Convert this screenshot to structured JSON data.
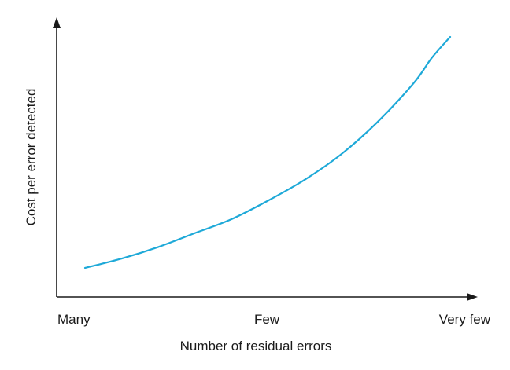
{
  "chart_data": {
    "type": "line",
    "title": "",
    "xlabel": "Number of residual errors",
    "ylabel": "Cost per error detected",
    "categories": [
      "Many",
      "Few",
      "Very few"
    ],
    "x": [
      0.0,
      0.1,
      0.2,
      0.3,
      0.4,
      0.5,
      0.6,
      0.7,
      0.8,
      0.9,
      0.95,
      1.0
    ],
    "y": [
      0.0,
      0.04,
      0.09,
      0.15,
      0.21,
      0.29,
      0.38,
      0.49,
      0.63,
      0.8,
      0.91,
      1.0
    ],
    "xlim": [
      0,
      1
    ],
    "ylim": [
      0,
      1
    ],
    "series": [
      {
        "values": [
          0.0,
          0.04,
          0.09,
          0.15,
          0.21,
          0.29,
          0.38,
          0.49,
          0.63,
          0.8,
          0.91,
          1.0
        ]
      }
    ],
    "line_color": "#1ea9d8",
    "grid": false,
    "legend": "none"
  }
}
